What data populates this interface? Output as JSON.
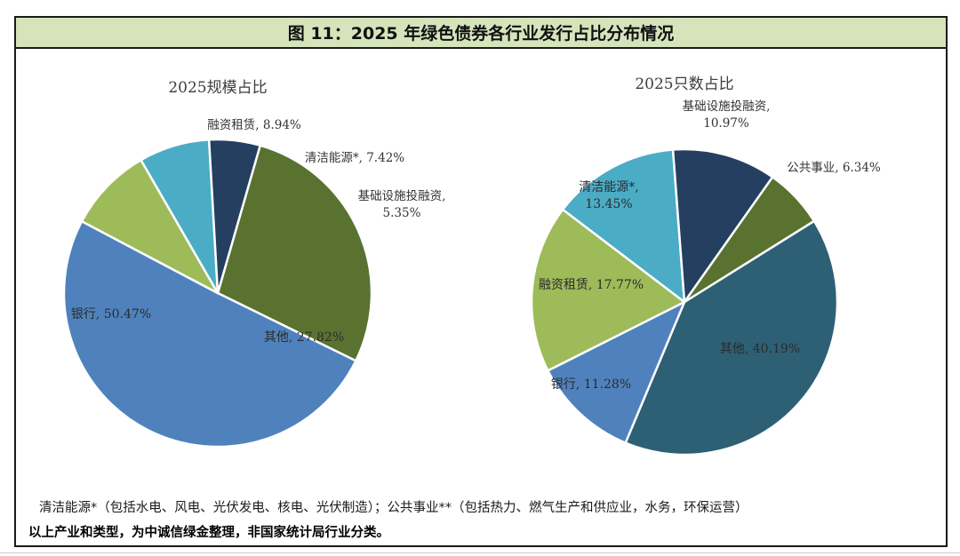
{
  "figure_title": "图 11：2025 年绿色债券各行业发行占比分布情况",
  "chart_data": [
    {
      "type": "pie",
      "title": "2025规模占比",
      "slices": [
        {
          "label": "其他",
          "value": 27.82,
          "value_text": "27.82%",
          "color": "#5a7230"
        },
        {
          "label": "银行",
          "value": 50.47,
          "value_text": "50.47%",
          "color": "#4f82bd"
        },
        {
          "label": "融资租赁",
          "value": 8.94,
          "value_text": "8.94%",
          "color": "#9ebb59"
        },
        {
          "label": "清洁能源*",
          "value": 7.42,
          "value_text": "7.42%",
          "color": "#4bacc6"
        },
        {
          "label": "基础设施投融资",
          "value": 5.35,
          "value_text": "5.35%",
          "color": "#243f60"
        }
      ]
    },
    {
      "type": "pie",
      "title": "2025只数占比",
      "slices": [
        {
          "label": "其他",
          "value": 40.19,
          "value_text": "40.19%",
          "color": "#2e6075"
        },
        {
          "label": "银行",
          "value": 11.28,
          "value_text": "11.28%",
          "color": "#4f82bd"
        },
        {
          "label": "融资租赁",
          "value": 17.77,
          "value_text": "17.77%",
          "color": "#9ebb59"
        },
        {
          "label": "清洁能源*",
          "value": 13.45,
          "value_text": "13.45%",
          "color": "#4bacc6"
        },
        {
          "label": "基础设施投融资",
          "value": 10.97,
          "value_text": "10.97%",
          "color": "#243f60"
        },
        {
          "label": "公共事业",
          "value": 6.34,
          "value_text": "6.34%",
          "color": "#5a7230"
        }
      ]
    }
  ],
  "notes": {
    "definitions": "清洁能源*（包括水电、风电、光伏发电、核电、光伏制造）；公共事业**（包括热力、燃气生产和供应业，水务，环保运营）",
    "source": "以上产业和类型，为中诚信绿金整理，非国家统计局行业分类。"
  }
}
